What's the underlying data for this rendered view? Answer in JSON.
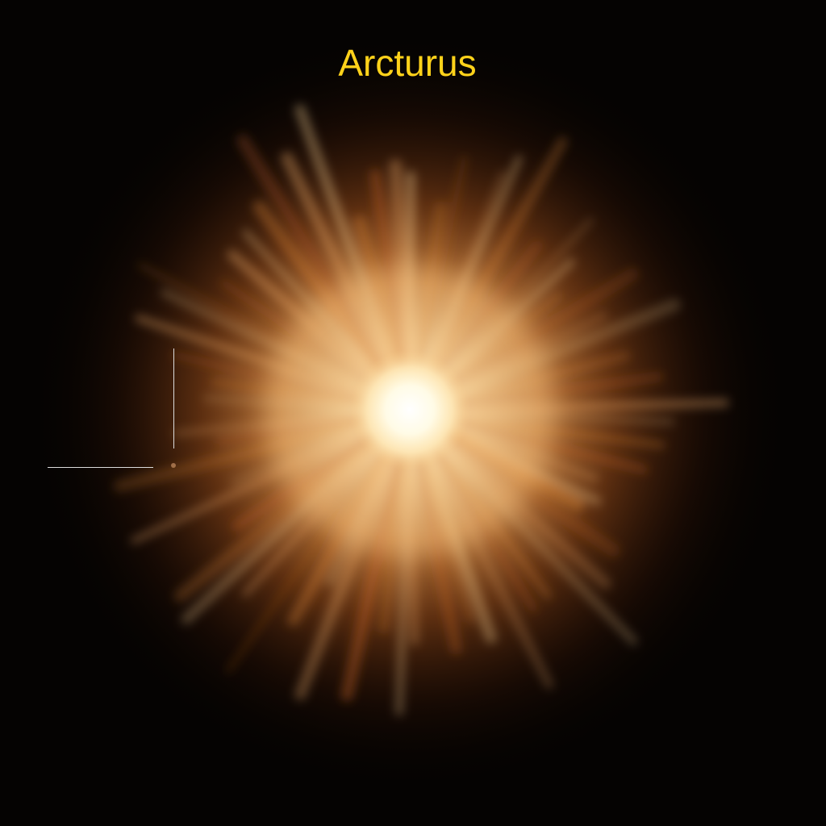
{
  "image": {
    "title": "Arcturus",
    "title_color": "#ffd21a",
    "background_color": "#050302",
    "marker_color": "#dcdcdc",
    "glow_colors": {
      "core": "#fffdf0",
      "inner": "#ffd89a",
      "middle": "#e8903c",
      "outer": "#8a3a10"
    }
  }
}
